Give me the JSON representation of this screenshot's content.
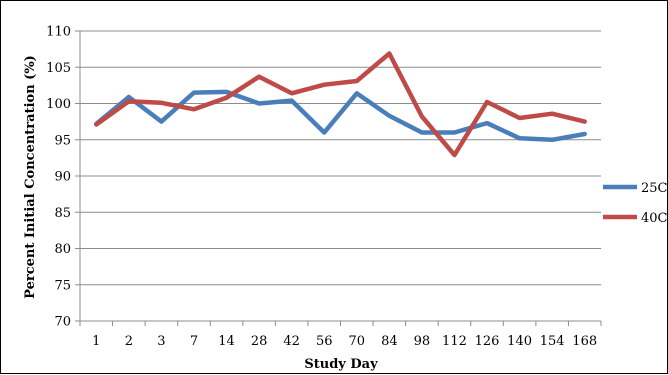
{
  "chart_data": {
    "type": "line",
    "xlabel": "Study Day",
    "ylabel": "Percent Initial Concentration (%)",
    "categories": [
      "1",
      "2",
      "3",
      "7",
      "14",
      "28",
      "42",
      "56",
      "70",
      "84",
      "98",
      "112",
      "126",
      "140",
      "154",
      "168"
    ],
    "ylim": [
      70,
      110
    ],
    "yticks": [
      70,
      75,
      80,
      85,
      90,
      95,
      100,
      105,
      110
    ],
    "grid": "horizontal",
    "legend_position": "right",
    "series": [
      {
        "name": "25C",
        "color": "#4a7ebb",
        "values": [
          97.2,
          100.9,
          97.5,
          101.5,
          101.6,
          100.0,
          100.4,
          96.0,
          101.4,
          98.3,
          96.0,
          96.0,
          97.3,
          95.2,
          95.0,
          95.8
        ]
      },
      {
        "name": "40C",
        "color": "#be4b48",
        "values": [
          97.1,
          100.3,
          100.1,
          99.2,
          100.8,
          103.7,
          101.4,
          102.6,
          103.1,
          106.9,
          98.2,
          92.9,
          100.2,
          98.0,
          98.6,
          97.5
        ]
      }
    ]
  }
}
